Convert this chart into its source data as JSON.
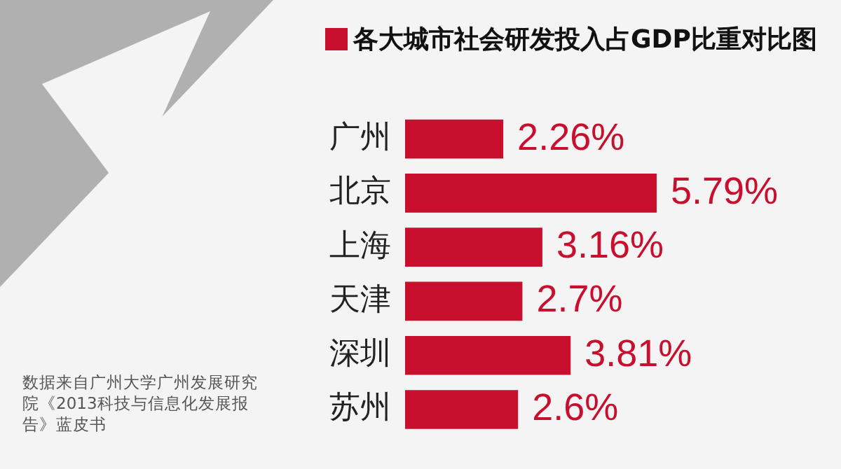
{
  "chart_data": {
    "type": "bar",
    "orientation": "horizontal",
    "title": "各大城市社会研发投入占GDP比重对比图",
    "categories": [
      "广州",
      "北京",
      "上海",
      "天津",
      "深圳",
      "苏州"
    ],
    "values": [
      2.26,
      5.79,
      3.16,
      2.7,
      3.81,
      2.6
    ],
    "value_labels": [
      "2.26%",
      "5.79%",
      "3.16%",
      "2.7%",
      "3.81%",
      "2.6%"
    ],
    "color": "#c8102e",
    "grid": false,
    "legend": false,
    "tick_labels": "y",
    "annotations": [
      "数据来自广州大学广州发展研究院《2013科技与信息化发展报告》蓝皮书"
    ]
  }
}
